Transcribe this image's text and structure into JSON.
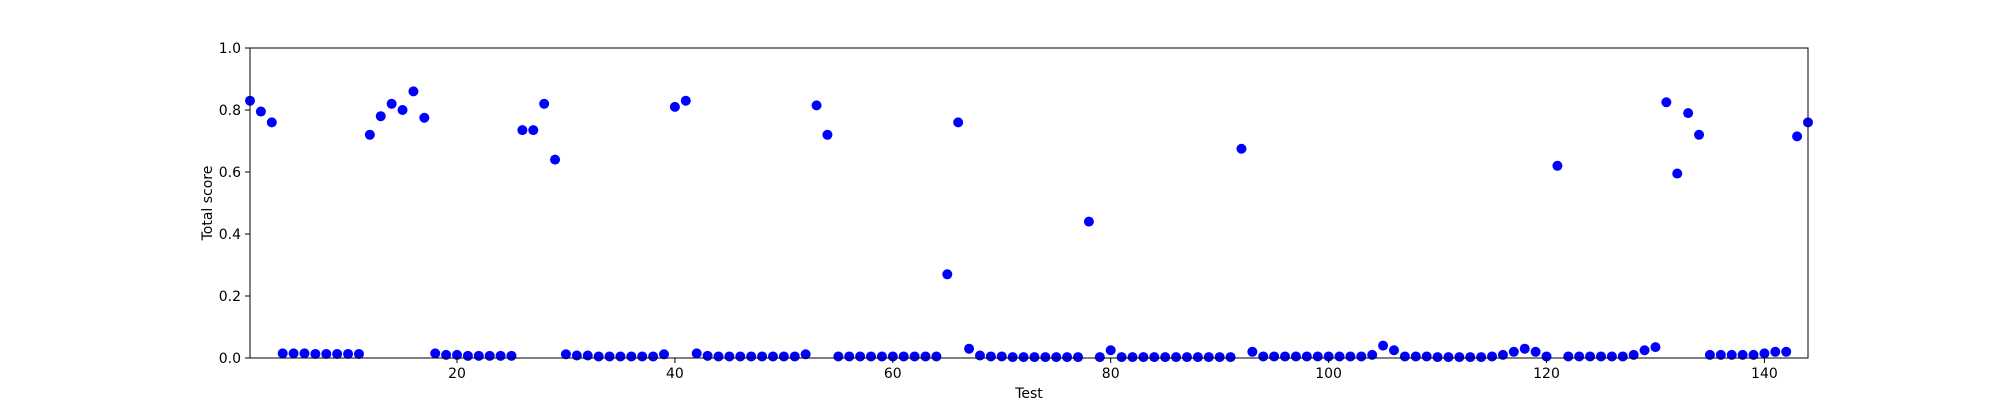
{
  "chart_data": {
    "type": "scatter",
    "xlabel": "Test",
    "ylabel": "Total score",
    "xlim": [
      1,
      144
    ],
    "ylim": [
      0,
      1.0
    ],
    "x_ticks": [
      20,
      40,
      60,
      80,
      100,
      120,
      140
    ],
    "x_tick_labels": [
      "20",
      "40",
      "60",
      "80",
      "100",
      "120",
      "140"
    ],
    "y_ticks": [
      0,
      0.2,
      0.4,
      0.6,
      0.8,
      1.0
    ],
    "y_tick_labels": [
      "0.0",
      "0.2",
      "0.4",
      "0.6",
      "0.8",
      "1.0"
    ],
    "grid": false,
    "marker_color": "#0000ff",
    "series": [
      {
        "x": [
          1,
          2,
          3,
          4,
          5,
          6,
          7,
          8,
          9,
          10,
          11,
          12,
          13,
          14,
          15,
          16,
          17,
          18,
          19,
          20,
          21,
          22,
          23,
          24,
          25,
          26,
          27,
          28,
          29,
          30,
          31,
          32,
          33,
          34,
          35,
          36,
          37,
          38,
          39,
          40,
          41,
          42,
          43,
          44,
          45,
          46,
          47,
          48,
          49,
          50,
          51,
          52,
          53,
          54,
          55,
          56,
          57,
          58,
          59,
          60,
          61,
          62,
          63,
          64,
          65,
          66,
          67,
          68,
          69,
          70,
          71,
          72,
          73,
          74,
          75,
          76,
          77,
          78,
          79,
          80,
          81,
          82,
          83,
          84,
          85,
          86,
          87,
          88,
          89,
          90,
          91,
          92,
          93,
          94,
          95,
          96,
          97,
          98,
          99,
          100,
          101,
          102,
          103,
          104,
          105,
          106,
          107,
          108,
          109,
          110,
          111,
          112,
          113,
          114,
          115,
          116,
          117,
          118,
          119,
          120,
          121,
          122,
          123,
          124,
          125,
          126,
          127,
          128,
          129,
          130,
          131,
          132,
          133,
          134,
          135,
          136,
          137,
          138,
          139,
          140,
          141,
          142,
          143,
          144
        ],
        "y": [
          0.83,
          0.795,
          0.76,
          0.015,
          0.015,
          0.015,
          0.013,
          0.013,
          0.013,
          0.013,
          0.013,
          0.72,
          0.78,
          0.82,
          0.8,
          0.86,
          0.775,
          0.015,
          0.01,
          0.01,
          0.007,
          0.007,
          0.007,
          0.007,
          0.007,
          0.735,
          0.735,
          0.82,
          0.64,
          0.012,
          0.008,
          0.008,
          0.005,
          0.005,
          0.005,
          0.005,
          0.005,
          0.005,
          0.012,
          0.81,
          0.83,
          0.015,
          0.007,
          0.005,
          0.005,
          0.005,
          0.005,
          0.005,
          0.005,
          0.005,
          0.005,
          0.012,
          0.815,
          0.72,
          0.005,
          0.005,
          0.005,
          0.005,
          0.005,
          0.005,
          0.005,
          0.005,
          0.005,
          0.005,
          0.27,
          0.76,
          0.03,
          0.008,
          0.005,
          0.005,
          0.003,
          0.003,
          0.003,
          0.003,
          0.003,
          0.003,
          0.003,
          0.44,
          0.003,
          0.025,
          0.003,
          0.003,
          0.003,
          0.003,
          0.003,
          0.003,
          0.003,
          0.003,
          0.003,
          0.003,
          0.003,
          0.675,
          0.02,
          0.005,
          0.005,
          0.005,
          0.005,
          0.005,
          0.005,
          0.005,
          0.005,
          0.005,
          0.005,
          0.01,
          0.04,
          0.025,
          0.005,
          0.005,
          0.005,
          0.003,
          0.003,
          0.003,
          0.003,
          0.003,
          0.005,
          0.01,
          0.02,
          0.03,
          0.02,
          0.005,
          0.62,
          0.005,
          0.005,
          0.005,
          0.005,
          0.005,
          0.005,
          0.01,
          0.025,
          0.035,
          0.825,
          0.595,
          0.79,
          0.72,
          0.01,
          0.01,
          0.01,
          0.01,
          0.01,
          0.015,
          0.02,
          0.02,
          0.715,
          0.76
        ]
      }
    ]
  }
}
